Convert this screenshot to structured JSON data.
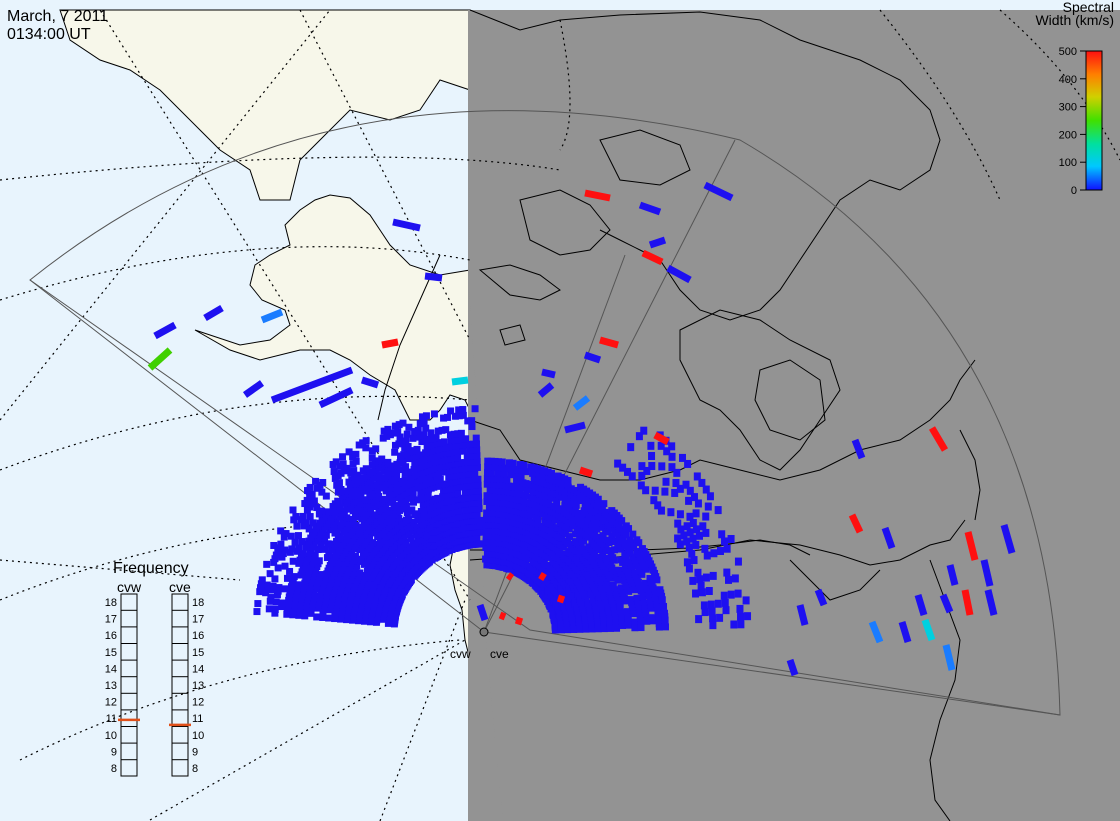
{
  "header": {
    "date": "March, 7 2011",
    "time": "0134:00 UT"
  },
  "colorbar": {
    "title_line1": "Spectral",
    "title_line2": "Width (km/s)",
    "ticks": [
      "500",
      "400",
      "300",
      "200",
      "100",
      "0"
    ],
    "colors": [
      "#1010ff",
      "#00c8ff",
      "#00e0a0",
      "#40e000",
      "#d0d000",
      "#ff8000",
      "#ff1010"
    ]
  },
  "radars": {
    "west": "cvw",
    "east": "cve"
  },
  "frequency": {
    "title": "Frequency",
    "left_label": "cvw",
    "right_label": "cve",
    "ticks": [
      "18",
      "17",
      "16",
      "15",
      "14",
      "13",
      "12",
      "11",
      "10",
      "9",
      "8"
    ],
    "cvw_value": 10.9,
    "cve_value": 10.6
  },
  "colors": {
    "ocean": "#e8f4fd",
    "land_day": "#f7f7ea",
    "night": "#939393",
    "scatter_blue": "#1e10f0",
    "scatter_red": "#ff1010",
    "marker_orange": "#e0501a"
  }
}
